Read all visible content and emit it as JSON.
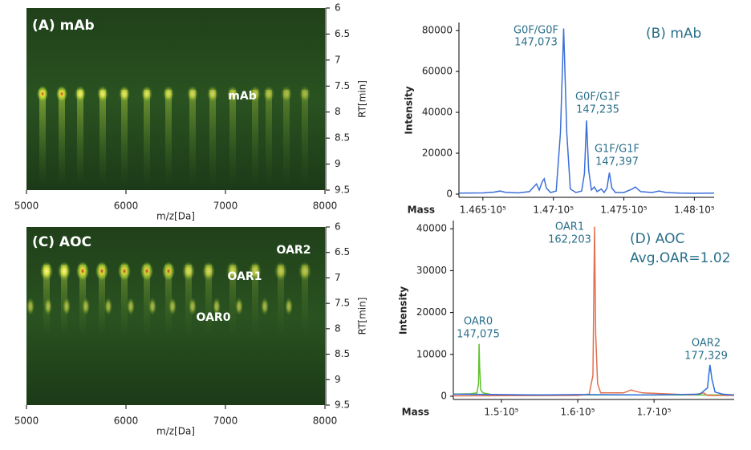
{
  "chart_data": [
    {
      "type": "heatmap",
      "title": "(A) mAb",
      "annotations": [
        "mAb"
      ],
      "xlabel": "m/z[Da]",
      "ylabel": "RT[min]",
      "xlim": [
        5000,
        8000
      ],
      "xticks": [
        5000,
        6000,
        7000,
        8000
      ],
      "ylim": [
        6,
        9.5
      ],
      "y_reversed": true,
      "yticks": [
        6,
        6.5,
        7,
        7.5,
        8,
        8.5,
        9,
        9.5
      ]
    },
    {
      "type": "line",
      "title": "(B) mAb",
      "annotations": [
        "G0F/G0F",
        "147,073",
        "G0F/G1F",
        "147,235",
        "G1F/G1F",
        "147,397"
      ],
      "xlabel": "Mass",
      "ylabel": "Intensity",
      "xlim": [
        146330,
        148140
      ],
      "xticks": [
        {
          "value": 146500,
          "label": "1.465·10⁵"
        },
        {
          "value": 147000,
          "label": "1.47·10⁵"
        },
        {
          "value": 147500,
          "label": "1.475·10⁵"
        },
        {
          "value": 148000,
          "label": "1.48·10⁵"
        }
      ],
      "ylim": [
        0,
        82000
      ],
      "yticks": [
        0,
        20000,
        40000,
        60000,
        80000
      ],
      "series": [
        {
          "color": "#3b6fd8",
          "x": [
            146330,
            146500,
            146580,
            146620,
            146660,
            146750,
            146830,
            146860,
            146880,
            146900,
            146920,
            146935,
            146950,
            146980,
            147020,
            147050,
            147073,
            147095,
            147120,
            147160,
            147200,
            147220,
            147235,
            147250,
            147270,
            147290,
            147310,
            147340,
            147360,
            147380,
            147397,
            147415,
            147440,
            147500,
            147560,
            147580,
            147620,
            147700,
            147750,
            147800,
            147900,
            148000,
            148140
          ],
          "values": [
            500,
            600,
            1000,
            1500,
            900,
            600,
            1200,
            3500,
            5000,
            2000,
            6000,
            7500,
            3000,
            800,
            1500,
            30000,
            81000,
            30000,
            2500,
            800,
            1500,
            10000,
            36000,
            12000,
            2000,
            3500,
            1200,
            2500,
            800,
            3000,
            10500,
            3000,
            800,
            800,
            2500,
            3500,
            1200,
            800,
            1500,
            800,
            500,
            400,
            500
          ]
        }
      ]
    },
    {
      "type": "heatmap",
      "title": "(C) AOC",
      "annotations": [
        "OAR2",
        "OAR1",
        "OAR0"
      ],
      "xlabel": "m/z[Da]",
      "ylabel": "RT[min]",
      "xlim": [
        5000,
        8000
      ],
      "xticks": [
        5000,
        6000,
        7000,
        8000
      ],
      "ylim": [
        6,
        9.5
      ],
      "y_reversed": true,
      "yticks": [
        6,
        6.5,
        7,
        7.5,
        8,
        8.5,
        9,
        9.5
      ]
    },
    {
      "type": "line",
      "title": [
        "(D) AOC",
        "Avg.OAR=1.02"
      ],
      "annotations": [
        "OAR0",
        "147,075",
        "OAR1",
        "162,203",
        "OAR2",
        "177,329"
      ],
      "xlabel": "Mass",
      "ylabel": "Intensity",
      "xlim": [
        143700,
        180500
      ],
      "xticks": [
        {
          "value": 150000,
          "label": "1.5·10⁵"
        },
        {
          "value": 160000,
          "label": "1.6·10⁵"
        },
        {
          "value": 170000,
          "label": "1.7·10⁵"
        }
      ],
      "ylim": [
        0,
        41000
      ],
      "yticks": [
        0,
        10000,
        20000,
        30000,
        40000
      ],
      "series": [
        {
          "color": "#5ec22a",
          "x": [
            143700,
            146000,
            146800,
            147000,
            147075,
            147150,
            147300,
            147600,
            149000,
            160000,
            180500
          ],
          "values": [
            500,
            600,
            800,
            3000,
            12500,
            7000,
            1500,
            800,
            300,
            300,
            300
          ]
        },
        {
          "color": "#e0704e",
          "x": [
            143700,
            160000,
            161500,
            162000,
            162203,
            162350,
            162600,
            163000,
            166000,
            167000,
            167500,
            168500,
            175000,
            176500,
            177000,
            180500
          ],
          "values": [
            100,
            200,
            500,
            5000,
            40500,
            15000,
            3000,
            800,
            800,
            1500,
            1200,
            800,
            300,
            800,
            200,
            200
          ]
        },
        {
          "color": "#2f6fe0",
          "x": [
            143700,
            150000,
            155000,
            160000,
            170000,
            176000,
            177000,
            177329,
            177600,
            178000,
            179000,
            180500
          ],
          "values": [
            500,
            400,
            300,
            400,
            300,
            500,
            2000,
            7500,
            4000,
            1000,
            500,
            300
          ]
        }
      ]
    }
  ]
}
